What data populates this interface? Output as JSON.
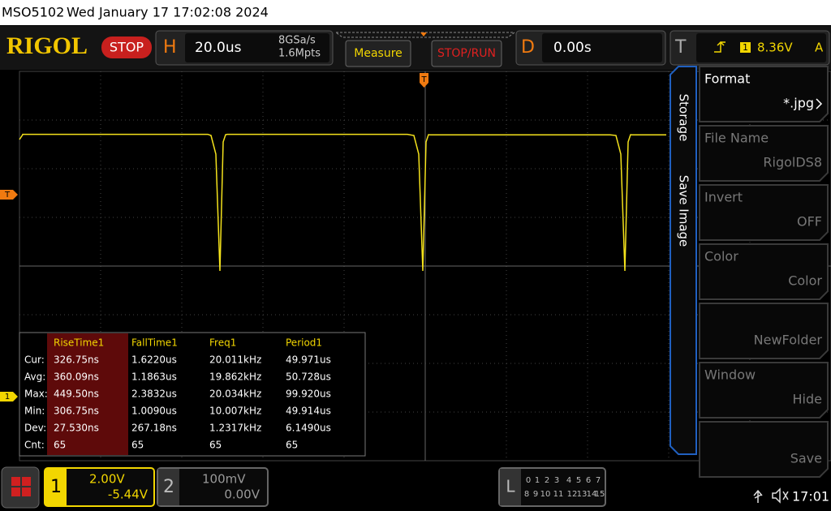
{
  "title_bar": {
    "model": "MSO5102",
    "datetime": "Wed January 17 17:02:08 2024"
  },
  "toolbar": {
    "brand": "RIGOL",
    "run_state": "STOP",
    "h_label": "H",
    "timebase": "20.0us",
    "sample_rate": "8GSa/s",
    "memory_depth": "1.6Mpts",
    "measure_button": "Measure",
    "stop_run_button": "STOP/RUN",
    "d_label": "D",
    "delay": "0.00s",
    "t_label": "T",
    "trigger_channel": "1",
    "trigger_level": "8.36V",
    "trigger_mode": "A"
  },
  "markers": {
    "trigger_top": "T",
    "trigger_left": "T",
    "channel1": "1"
  },
  "measurements": {
    "headers": [
      "RiseTime1",
      "FallTime1",
      "Freq1",
      "Period1"
    ],
    "rows": [
      [
        "Cur:",
        "326.75ns",
        "1.6220us",
        "20.011kHz",
        "49.971us"
      ],
      [
        "Avg:",
        "360.09ns",
        "1.1863us",
        "19.862kHz",
        "50.728us"
      ],
      [
        "Max:",
        "449.50ns",
        "2.3832us",
        "20.034kHz",
        "99.920us"
      ],
      [
        "Min:",
        "306.75ns",
        "1.0090us",
        "10.007kHz",
        "49.914us"
      ],
      [
        "Dev:",
        "27.530ns",
        "267.18ns",
        "1.2317kHz",
        "6.1490us"
      ],
      [
        "Cnt:",
        "65",
        "65",
        "65",
        "65"
      ]
    ]
  },
  "menu": {
    "tabs": [
      "Storage",
      "Save Image"
    ],
    "items": [
      {
        "label": "Format",
        "value": "*.jpg"
      },
      {
        "label": "File Name",
        "value": "RigolDS8"
      },
      {
        "label": "Invert",
        "value": "OFF"
      },
      {
        "label": "Color",
        "value": "Color"
      },
      {
        "value": "NewFolder"
      },
      {
        "label": "Window",
        "value": "Hide"
      },
      {
        "value": "Save"
      }
    ]
  },
  "bottom": {
    "ch1": {
      "number": "1",
      "scale": "2.00V",
      "offset": "-5.44V"
    },
    "ch2": {
      "number": "2",
      "scale": "100mV",
      "offset": "0.00V"
    },
    "l_label": "L",
    "digital_row1": [
      "0",
      "1",
      "2",
      "3",
      "4",
      "5",
      "6",
      "7"
    ],
    "digital_row2": [
      "8",
      "9",
      "10",
      "11",
      "12",
      "13",
      "14",
      "15"
    ],
    "time": "17:01"
  }
}
